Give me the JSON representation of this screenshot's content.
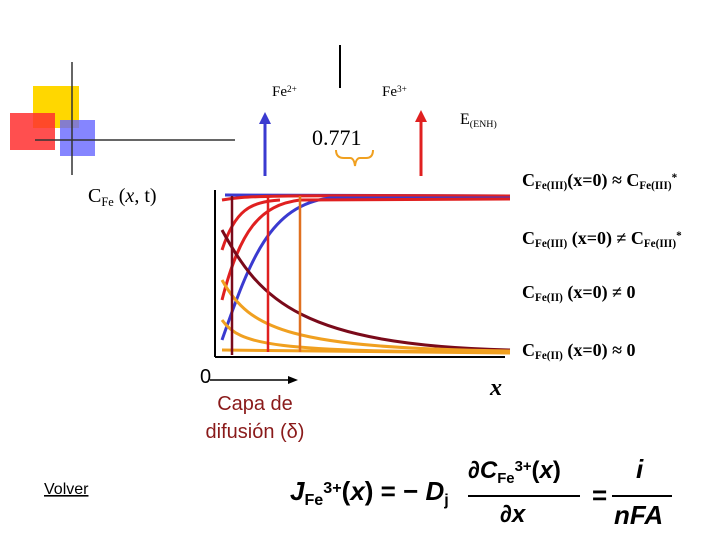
{
  "top_labels": {
    "fe2": [
      {
        "t": "Fe"
      },
      {
        "sup": "2+"
      }
    ],
    "fe3": [
      {
        "t": "Fe"
      },
      {
        "sup": "3+"
      }
    ],
    "potential": "0.771",
    "electrode": [
      {
        "t": "E"
      },
      {
        "sub": "(ENH)"
      }
    ]
  },
  "axis_label": [
    {
      "t": "C"
    },
    {
      "sub": "Fe"
    },
    {
      "t": " ("
    },
    {
      "i": "x"
    },
    {
      "t": ", t)"
    }
  ],
  "conditions": [
    [
      {
        "t": "C"
      },
      {
        "sub": "Fe(III)"
      },
      {
        "t": "(x=0) ≈ C"
      },
      {
        "sub": "Fe(III)"
      },
      {
        "sup": "*"
      }
    ],
    [
      {
        "t": "C"
      },
      {
        "sub": "Fe(III)"
      },
      {
        "t": " (x=0) ≠ C"
      },
      {
        "sub": "Fe(III)"
      },
      {
        "sup": "*"
      }
    ],
    [
      {
        "t": "C"
      },
      {
        "sub": "Fe(II)"
      },
      {
        "t": " (x=0) ≠ 0"
      }
    ],
    [
      {
        "t": "C"
      },
      {
        "sub": "Fe(II)"
      },
      {
        "t": " (x=0) ≈ 0"
      }
    ]
  ],
  "origin": "0",
  "layer_lines": [
    "Capa de",
    "difusión (δ)"
  ],
  "x_label": "x",
  "back_link": "Volver",
  "equation": {
    "lhs": [
      {
        "i": "J"
      },
      {
        "sub": "Fe"
      },
      {
        "sup": "3+"
      },
      {
        "t": "("
      },
      {
        "i": "x"
      },
      {
        "t": ") = − "
      },
      {
        "i": "D"
      },
      {
        "sub": "j"
      }
    ],
    "num1": [
      {
        "t": "∂"
      },
      {
        "i": "C"
      },
      {
        "sub": "Fe"
      },
      {
        "sup": "3+"
      },
      {
        "t": "("
      },
      {
        "i": "x"
      },
      {
        "t": ")"
      }
    ],
    "den1": [
      {
        "t": "∂"
      },
      {
        "i": "x"
      }
    ],
    "eq": "=",
    "num2": [
      {
        "i": "i"
      }
    ],
    "den2": [
      {
        "i": "nFA"
      }
    ]
  }
}
